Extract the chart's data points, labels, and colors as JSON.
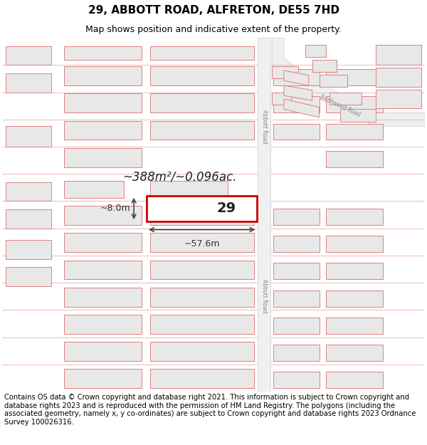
{
  "title": "29, ABBOTT ROAD, ALFRETON, DE55 7HD",
  "subtitle": "Map shows position and indicative extent of the property.",
  "footer": "Contains OS data © Crown copyright and database right 2021. This information is subject to Crown copyright and database rights 2023 and is reproduced with the permission of HM Land Registry. The polygons (including the associated geometry, namely x, y co-ordinates) are subject to Crown copyright and database rights 2023 Ordnance Survey 100026316.",
  "area_text": "~388m²/~0.096ac.",
  "plot_label": "29",
  "dim_width": "~57.6m",
  "dim_height": "~8.0m",
  "bg_color": "#ffffff",
  "map_bg": "#f5f5f5",
  "plot_fill": "#ffffff",
  "plot_stroke": "#cc0000",
  "bldg_fill": "#e8e8e8",
  "bldg_edge": "#e08080",
  "road_fill": "#f8f8f8",
  "road_edge": "#cccccc",
  "road_label_color": "#888888",
  "dim_color": "#333333",
  "text_color": "#000000",
  "title_fontsize": 11,
  "subtitle_fontsize": 9,
  "footer_fontsize": 7.2
}
